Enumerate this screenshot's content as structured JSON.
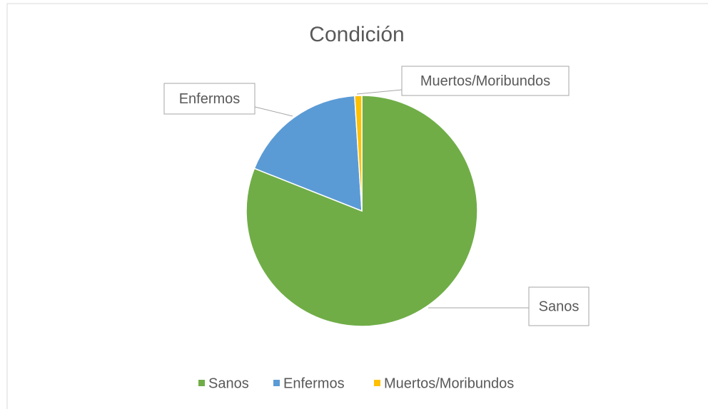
{
  "chart_data": {
    "type": "pie",
    "title": "Condición",
    "categories": [
      "Sanos",
      "Enfermos",
      "Muertos/Moribundos"
    ],
    "values": [
      81,
      18,
      1
    ],
    "colors": [
      "#70ad47",
      "#5b9bd5",
      "#ffc000"
    ],
    "legend": "bottom"
  }
}
